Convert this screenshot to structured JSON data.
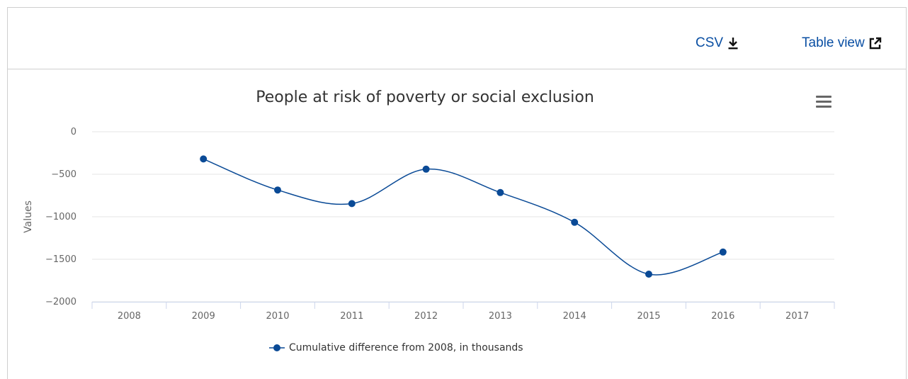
{
  "toolbar": {
    "csv_label": "CSV",
    "csv_icon": "download-icon",
    "table_label": "Table view",
    "table_icon": "external-link-icon",
    "link_color": "#0a4fa3"
  },
  "menu_icon": "hamburger-menu-icon",
  "chart_data": {
    "type": "line",
    "title": "People at risk of poverty or social exclusion",
    "ylabel": "Values",
    "xlabel": "",
    "categories": [
      "2008",
      "2009",
      "2010",
      "2011",
      "2012",
      "2013",
      "2014",
      "2015",
      "2016",
      "2017"
    ],
    "yticks": [
      0,
      -500,
      -1000,
      -1500,
      -2000
    ],
    "ytick_labels": [
      "0",
      "−500",
      "−1000",
      "−1500",
      "−2000"
    ],
    "ylim": [
      -2000,
      0
    ],
    "grid": true,
    "smooth": true,
    "legend_position": "bottom-center",
    "series": [
      {
        "name": "Cumulative difference from 2008, in thousands",
        "color": "#0a4a96",
        "values": [
          null,
          -320,
          -685,
          -845,
          -440,
          -715,
          -1065,
          -1675,
          -1415,
          null
        ]
      }
    ]
  }
}
